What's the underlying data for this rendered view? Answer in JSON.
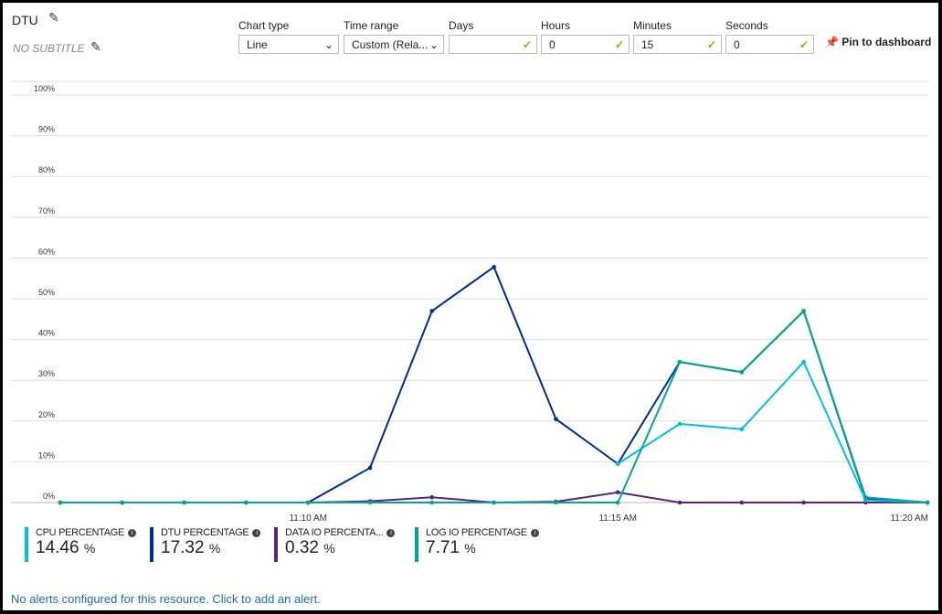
{
  "header": {
    "title": "DTU",
    "subtitle": "NO SUBTITLE"
  },
  "controls": {
    "chart_type": {
      "label": "Chart type",
      "value": "Line"
    },
    "time_range": {
      "label": "Time range",
      "value": "Custom (Rela..."
    },
    "days": {
      "label": "Days",
      "value": ""
    },
    "hours": {
      "label": "Hours",
      "value": "0"
    },
    "minutes": {
      "label": "Minutes",
      "value": "15"
    },
    "seconds": {
      "label": "Seconds",
      "value": "0"
    },
    "pin": "Pin to dashboard"
  },
  "chart_data": {
    "type": "line",
    "y_ticks": [
      "0%",
      "10%",
      "20%",
      "30%",
      "40%",
      "50%",
      "60%",
      "70%",
      "80%",
      "90%",
      "100%"
    ],
    "ylim": [
      0,
      100
    ],
    "x": [
      "11:06",
      "11:07",
      "11:08",
      "11:09",
      "11:10",
      "11:11",
      "11:12",
      "11:13",
      "11:14",
      "11:15",
      "11:16",
      "11:17",
      "11:18",
      "11:19",
      "11:20"
    ],
    "x_tick_labels": [
      {
        "at": 4,
        "label": "11:10 AM"
      },
      {
        "at": 9,
        "label": "11:15 AM"
      },
      {
        "at": 14,
        "label": "11:20 AM"
      }
    ],
    "grid": true,
    "series": [
      {
        "name": "DTU PERCENTAGE",
        "color": "#002b9a",
        "values": [
          0,
          0,
          0,
          0,
          0,
          8.5,
          47,
          57.8,
          20.5,
          9.5,
          34.5,
          32,
          47,
          1,
          0
        ]
      },
      {
        "name": "DATA IO PERCENTAGE",
        "color": "#5c2478",
        "values": [
          0,
          0,
          0,
          0,
          0,
          0.3,
          1.3,
          0,
          0.2,
          2.5,
          0,
          0,
          0,
          0,
          0
        ]
      },
      {
        "name": "CPU PERCENTAGE",
        "color": "#00bcf2",
        "values": [
          null,
          null,
          null,
          null,
          null,
          null,
          null,
          null,
          null,
          9.5,
          19.3,
          18,
          34.5,
          0.6,
          0
        ]
      },
      {
        "name": "LOG IO PERCENTAGE",
        "color": "#00a88f",
        "values": [
          0,
          0,
          0,
          0,
          0,
          0,
          0,
          0,
          0,
          0,
          34.5,
          32,
          47,
          1.3,
          0
        ]
      }
    ]
  },
  "legend": [
    {
      "name": "CPU PERCENTAGE",
      "value": "14.46",
      "unit": "%",
      "color": "#00bcf2"
    },
    {
      "name": "DTU PERCENTAGE",
      "value": "17.32",
      "unit": "%",
      "color": "#002b9a"
    },
    {
      "name": "DATA IO PERCENTA...",
      "value": "0.32",
      "unit": "%",
      "color": "#5c2478"
    },
    {
      "name": "LOG IO PERCENTAGE",
      "value": "7.71",
      "unit": "%",
      "color": "#00a88f"
    }
  ],
  "alert": "No alerts configured for this resource. Click to add an alert."
}
